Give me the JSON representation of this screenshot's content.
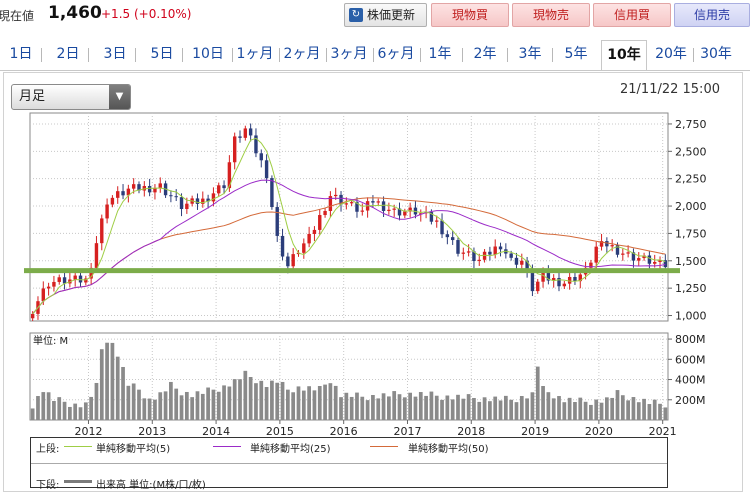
{
  "header": {
    "price_label": "現在値",
    "price": "1,460",
    "change": "+1.5 (+0.10%)",
    "refresh_label": "株価更新",
    "buttons": [
      "現物買",
      "現物売",
      "信用買",
      "信用売"
    ],
    "colors": {
      "up": "#d0021b",
      "buy": "#c02020",
      "sell": "#2a3aa5"
    }
  },
  "tabs": [
    "1日",
    "2日",
    "3日",
    "5日",
    "10日",
    "1ヶ月",
    "2ヶ月",
    "3ヶ月",
    "6ヶ月",
    "1年",
    "2年",
    "3年",
    "5年",
    "10年",
    "20年",
    "30年"
  ],
  "active_tab": "10年",
  "period_select": "月足",
  "datetime": "21/11/22 15:00",
  "chart_data": {
    "type": "candlestick",
    "price_axis": {
      "min": 950,
      "max": 2850,
      "ticks": [
        1000,
        1250,
        1500,
        1750,
        2000,
        2250,
        2500,
        2750
      ],
      "labels": [
        "1,000",
        "1,250",
        "1,500",
        "1,750",
        "2,000",
        "2,250",
        "2,500",
        "2,750"
      ]
    },
    "volume_axis": {
      "unit_label": "単位: M",
      "max": 860,
      "ticks": [
        200,
        400,
        600,
        800
      ],
      "labels": [
        "200M",
        "400M",
        "600M",
        "800M"
      ]
    },
    "x_axis": {
      "labels": [
        "2012",
        "2013",
        "2014",
        "2015",
        "2016",
        "2017",
        "2018",
        "2019",
        "2020",
        "2021"
      ]
    },
    "horizontal_line": {
      "value": 1410,
      "color": "#7cac4a"
    },
    "colors": {
      "up": "#d62020",
      "down": "#2b3d7a",
      "ma5": "#9fce45",
      "ma25": "#9b2bc8",
      "ma50": "#d46a3a",
      "volume": "#8a8a8a"
    },
    "close_anchors": [
      [
        0,
        1060
      ],
      [
        3,
        1300
      ],
      [
        6,
        1320
      ],
      [
        10,
        1320
      ],
      [
        11,
        1480
      ],
      [
        14,
        2050
      ],
      [
        18,
        2150
      ],
      [
        24,
        2180
      ],
      [
        28,
        2000
      ],
      [
        32,
        2050
      ],
      [
        36,
        2200
      ],
      [
        38,
        2600
      ],
      [
        40,
        2700
      ],
      [
        42,
        2500
      ],
      [
        44,
        2300
      ],
      [
        46,
        1700
      ],
      [
        48,
        1450
      ],
      [
        50,
        1600
      ],
      [
        52,
        1700
      ],
      [
        54,
        1900
      ],
      [
        56,
        2100
      ],
      [
        60,
        2000
      ],
      [
        62,
        1950
      ],
      [
        64,
        2050
      ],
      [
        68,
        1950
      ],
      [
        72,
        1950
      ],
      [
        76,
        1850
      ],
      [
        80,
        1600
      ],
      [
        84,
        1500
      ],
      [
        88,
        1650
      ],
      [
        90,
        1500
      ],
      [
        92,
        1500
      ],
      [
        94,
        1250
      ],
      [
        96,
        1350
      ],
      [
        100,
        1300
      ],
      [
        104,
        1400
      ],
      [
        106,
        1620
      ],
      [
        108,
        1650
      ],
      [
        112,
        1550
      ],
      [
        116,
        1500
      ],
      [
        118,
        1460
      ]
    ],
    "volume_anchors": [
      [
        0,
        150
      ],
      [
        2,
        300
      ],
      [
        4,
        200
      ],
      [
        6,
        180
      ],
      [
        8,
        150
      ],
      [
        10,
        150
      ],
      [
        12,
        330
      ],
      [
        13,
        700
      ],
      [
        14,
        800
      ],
      [
        15,
        750
      ],
      [
        16,
        650
      ],
      [
        17,
        500
      ],
      [
        18,
        350
      ],
      [
        20,
        300
      ],
      [
        22,
        200
      ],
      [
        24,
        250
      ],
      [
        26,
        340
      ],
      [
        28,
        280
      ],
      [
        30,
        250
      ],
      [
        32,
        270
      ],
      [
        34,
        300
      ],
      [
        36,
        330
      ],
      [
        38,
        380
      ],
      [
        40,
        450
      ],
      [
        42,
        400
      ],
      [
        44,
        350
      ],
      [
        46,
        380
      ],
      [
        48,
        300
      ],
      [
        50,
        320
      ],
      [
        52,
        310
      ],
      [
        54,
        300
      ],
      [
        56,
        400
      ],
      [
        58,
        250
      ],
      [
        60,
        240
      ],
      [
        62,
        230
      ],
      [
        66,
        240
      ],
      [
        70,
        260
      ],
      [
        74,
        250
      ],
      [
        78,
        230
      ],
      [
        82,
        220
      ],
      [
        86,
        210
      ],
      [
        90,
        200
      ],
      [
        94,
        250
      ],
      [
        95,
        540
      ],
      [
        96,
        300
      ],
      [
        100,
        200
      ],
      [
        104,
        180
      ],
      [
        108,
        200
      ],
      [
        110,
        260
      ],
      [
        114,
        200
      ],
      [
        116,
        170
      ],
      [
        118,
        160
      ]
    ],
    "legend": {
      "upper_label": "上段:",
      "lower_label": "下段:",
      "ma5": "単純移動平均(5)",
      "ma25": "単純移動平均(25)",
      "ma50": "単純移動平均(50)",
      "volume": "出来高 単位:(M株/口/枚)"
    }
  }
}
